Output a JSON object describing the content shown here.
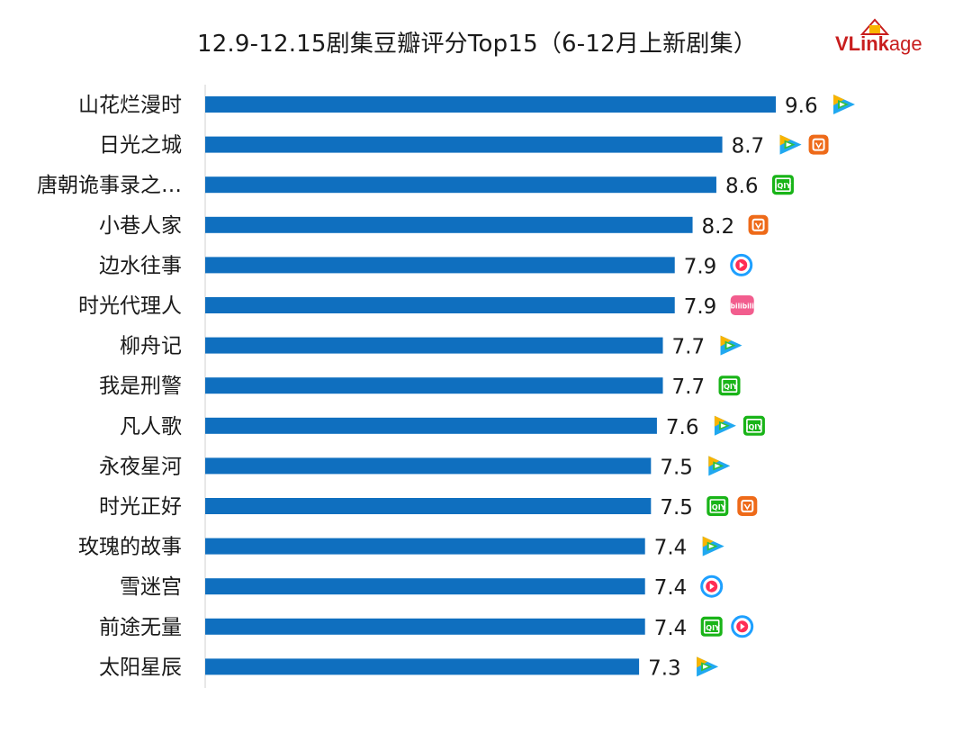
{
  "chart_data": {
    "type": "bar",
    "orientation": "horizontal",
    "title": "12.9-12.15剧集豆瓣评分Top15（6-12月上新剧集）",
    "xlabel": "",
    "ylabel": "",
    "xlim": [
      0,
      9.6
    ],
    "grid": false,
    "bar_color": "#0f6fbf",
    "categories": [
      "山花烂漫时",
      "日光之城",
      "唐朝诡事录之…",
      "小巷人家",
      "边水往事",
      "时光代理人",
      "柳舟记",
      "我是刑警",
      "凡人歌",
      "永夜星河",
      "时光正好",
      "玫瑰的故事",
      "雪迷宫",
      "前途无量",
      "太阳星辰"
    ],
    "values": [
      9.6,
      8.7,
      8.6,
      8.2,
      7.9,
      7.9,
      7.7,
      7.7,
      7.6,
      7.5,
      7.5,
      7.4,
      7.4,
      7.4,
      7.3
    ],
    "value_labels": [
      "9.6",
      "8.7",
      "8.6",
      "8.2",
      "7.9",
      "7.9",
      "7.7",
      "7.7",
      "7.6",
      "7.5",
      "7.5",
      "7.4",
      "7.4",
      "7.4",
      "7.3"
    ],
    "platforms": [
      [
        "tencent"
      ],
      [
        "tencent",
        "mango"
      ],
      [
        "iqiyi"
      ],
      [
        "mango"
      ],
      [
        "youku"
      ],
      [
        "bilibili"
      ],
      [
        "tencent"
      ],
      [
        "iqiyi"
      ],
      [
        "tencent",
        "iqiyi"
      ],
      [
        "tencent"
      ],
      [
        "iqiyi",
        "mango"
      ],
      [
        "tencent"
      ],
      [
        "youku"
      ],
      [
        "iqiyi",
        "youku"
      ],
      [
        "tencent"
      ]
    ]
  },
  "logo": {
    "brand": "VLinkage",
    "part1": "VLink",
    "part2": "age",
    "color": "#c81e1e"
  },
  "platform_icons": {
    "tencent": {
      "icon": "tencent-video-icon",
      "colors": [
        "#20a8f0",
        "#f9b400",
        "#2fbf3f"
      ]
    },
    "mango": {
      "icon": "mango-tv-icon",
      "color": "#ee6a19"
    },
    "iqiyi": {
      "icon": "iqiyi-icon",
      "color": "#19b418",
      "text": "iQIY"
    },
    "youku": {
      "icon": "youku-icon",
      "colors": [
        "#1ea0ff",
        "#ff2d55"
      ]
    },
    "bilibili": {
      "icon": "bilibili-icon",
      "color": "#f25d8e",
      "text": "bilibili"
    }
  }
}
